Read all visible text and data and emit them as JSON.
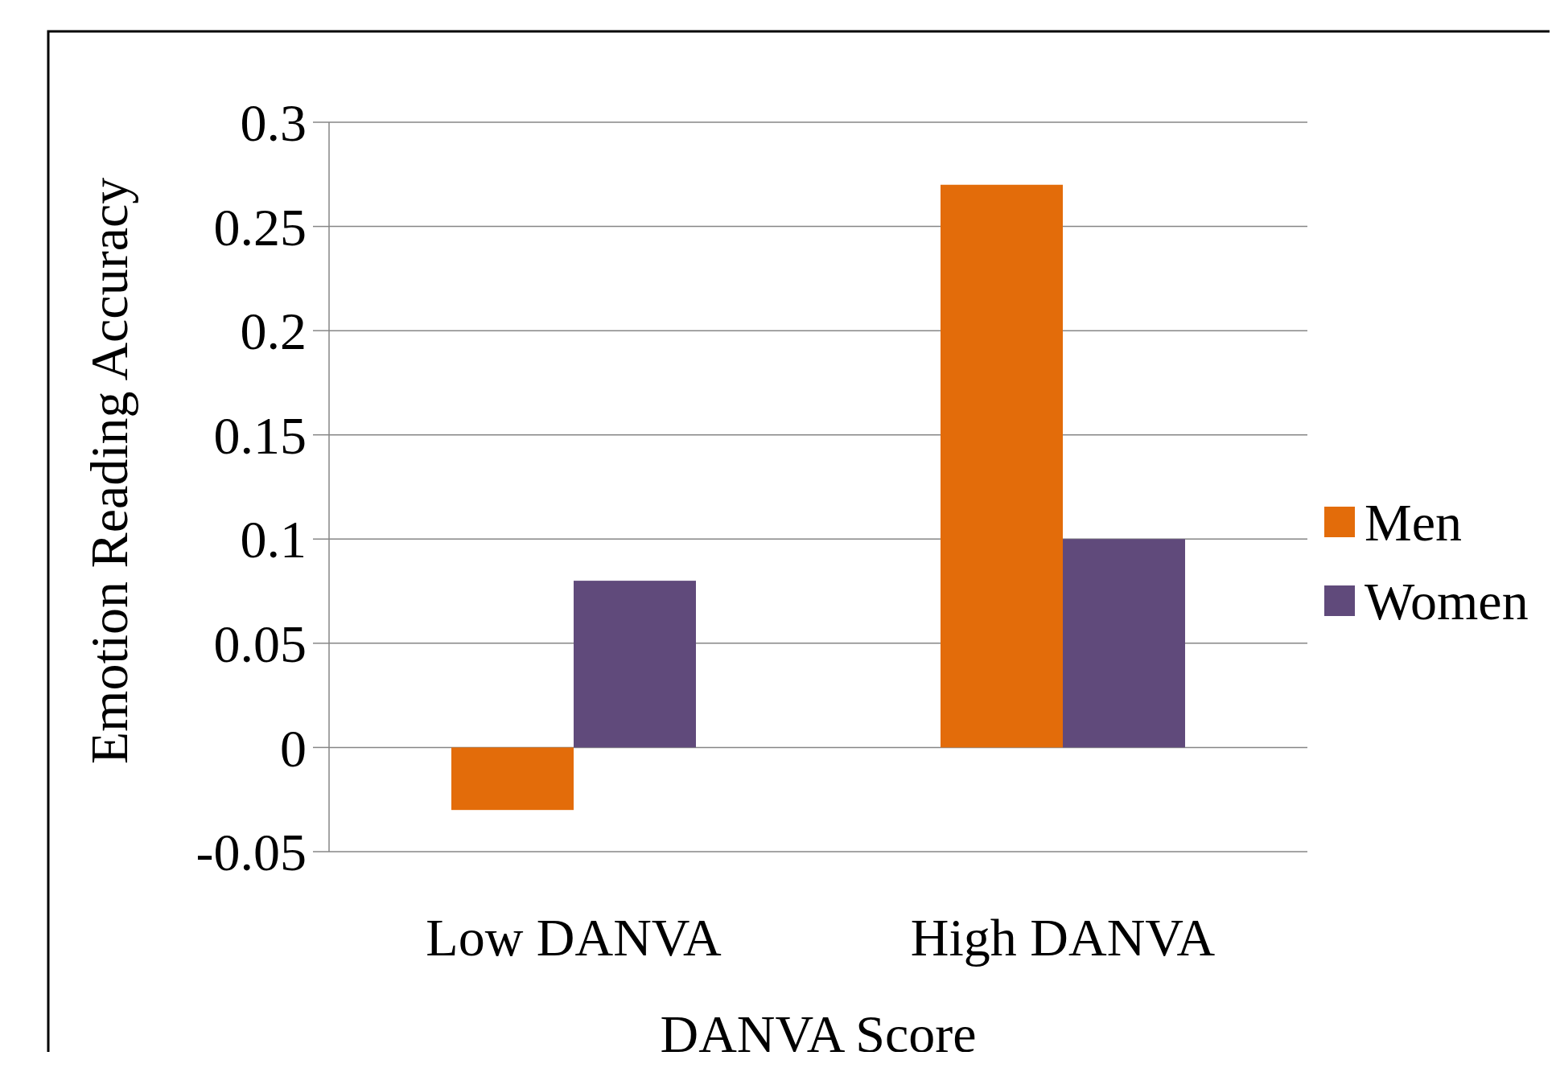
{
  "chart_data": {
    "type": "bar",
    "xlabel": "DANVA Score",
    "ylabel": "Emotion Reading Accuracy",
    "categories": [
      "Low DANVA",
      "High DANVA"
    ],
    "series": [
      {
        "name": "Men",
        "color": "#e36c0a",
        "values": [
          -0.03,
          0.27
        ]
      },
      {
        "name": "Women",
        "color": "#604a7b",
        "values": [
          0.08,
          0.1
        ]
      }
    ],
    "ylim": [
      -0.05,
      0.3
    ],
    "yticks": [
      -0.05,
      0,
      0.05,
      0.1,
      0.15,
      0.2,
      0.25,
      0.3
    ],
    "grid": "y",
    "legend": "right"
  }
}
